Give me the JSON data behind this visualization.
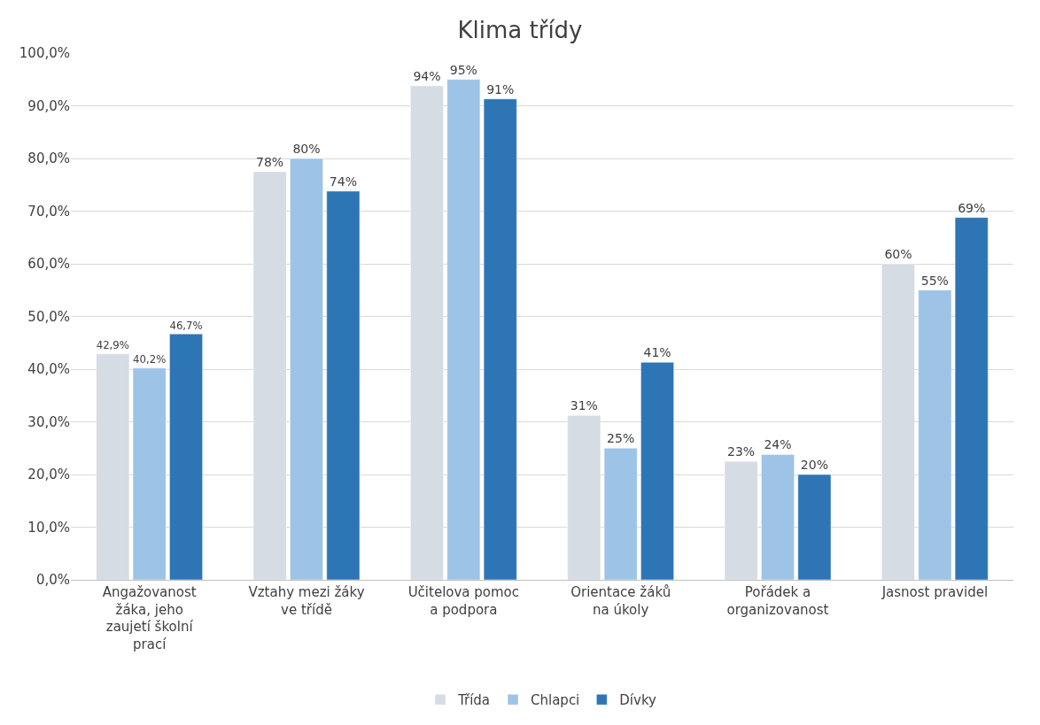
{
  "chart_data": {
    "type": "bar",
    "title": "Klima třídy",
    "categories": [
      "Angažovanost žáka, jeho zaujetí školní prací",
      "Vztahy mezi žáky ve třídě",
      "Učitelova pomoc a podpora",
      "Orientace žáků na úkoly",
      "Pořádek a organizovanost",
      "Jasnost pravidel"
    ],
    "series": [
      {
        "name": "Třída",
        "color": "#d6dce4",
        "values": [
          42.9,
          77.5,
          93.8,
          31.2,
          22.5,
          60.0
        ],
        "value_labels": [
          "42,9%",
          "78%",
          "94%",
          "31%",
          "23%",
          "60%"
        ]
      },
      {
        "name": "Chlapci",
        "color": "#9dc3e6",
        "values": [
          40.2,
          80.0,
          95.0,
          25.0,
          23.8,
          55.0
        ],
        "value_labels": [
          "40,2%",
          "80%",
          "95%",
          "25%",
          "24%",
          "55%"
        ]
      },
      {
        "name": "Dívky",
        "color": "#2e75b6",
        "values": [
          46.7,
          73.8,
          91.3,
          41.3,
          20.0,
          68.8
        ],
        "value_labels": [
          "46,7%",
          "74%",
          "91%",
          "41%",
          "20%",
          "69%"
        ]
      }
    ],
    "ylim": [
      0,
      100
    ],
    "yticks": [
      {
        "value": 0,
        "label": "0,0%"
      },
      {
        "value": 10,
        "label": "10,0%"
      },
      {
        "value": 20,
        "label": "20,0%"
      },
      {
        "value": 30,
        "label": "30,0%"
      },
      {
        "value": 40,
        "label": "40,0%"
      },
      {
        "value": 50,
        "label": "50,0%"
      },
      {
        "value": 60,
        "label": "60,0%"
      },
      {
        "value": 70,
        "label": "70,0%"
      },
      {
        "value": 80,
        "label": "80,0%"
      },
      {
        "value": 90,
        "label": "90,0%"
      },
      {
        "value": 100,
        "label": "100,0%"
      }
    ],
    "grid": "y",
    "legend": "bottom"
  }
}
